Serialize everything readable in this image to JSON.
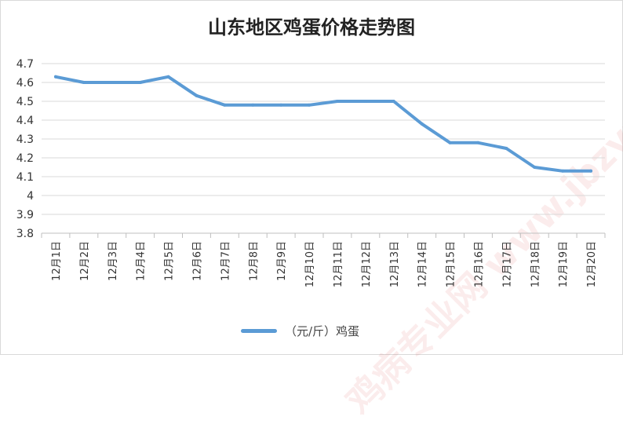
{
  "chart_data": {
    "type": "line",
    "title": "山东地区鸡蛋价格走势图",
    "xlabel": "",
    "ylabel": "",
    "categories": [
      "12月1日",
      "12月2日",
      "12月3日",
      "12月4日",
      "12月5日",
      "12月6日",
      "12月7日",
      "12月8日",
      "12月9日",
      "12月10日",
      "12月11日",
      "12月12日",
      "12月13日",
      "12月14日",
      "12月15日",
      "12月16日",
      "12月17日",
      "12月18日",
      "12月19日",
      "12月20日"
    ],
    "series": [
      {
        "name": "（元/斤）鸡蛋",
        "values": [
          4.63,
          4.6,
          4.6,
          4.6,
          4.63,
          4.53,
          4.48,
          4.48,
          4.48,
          4.48,
          4.5,
          4.5,
          4.5,
          4.38,
          4.28,
          4.28,
          4.25,
          4.15,
          4.13,
          4.13
        ]
      }
    ],
    "ylim": [
      3.8,
      4.7
    ],
    "yticks": [
      "3.8",
      "3.9",
      "4",
      "4.1",
      "4.2",
      "4.3",
      "4.4",
      "4.5",
      "4.6",
      "4.7"
    ],
    "grid": true,
    "legend": "bottom",
    "colors": {
      "series": "#5b9bd5",
      "grid": "#d9d9d9",
      "axis": "#bfbfbf"
    }
  },
  "watermark": "鸡病专业网 www.jbzyw.com"
}
